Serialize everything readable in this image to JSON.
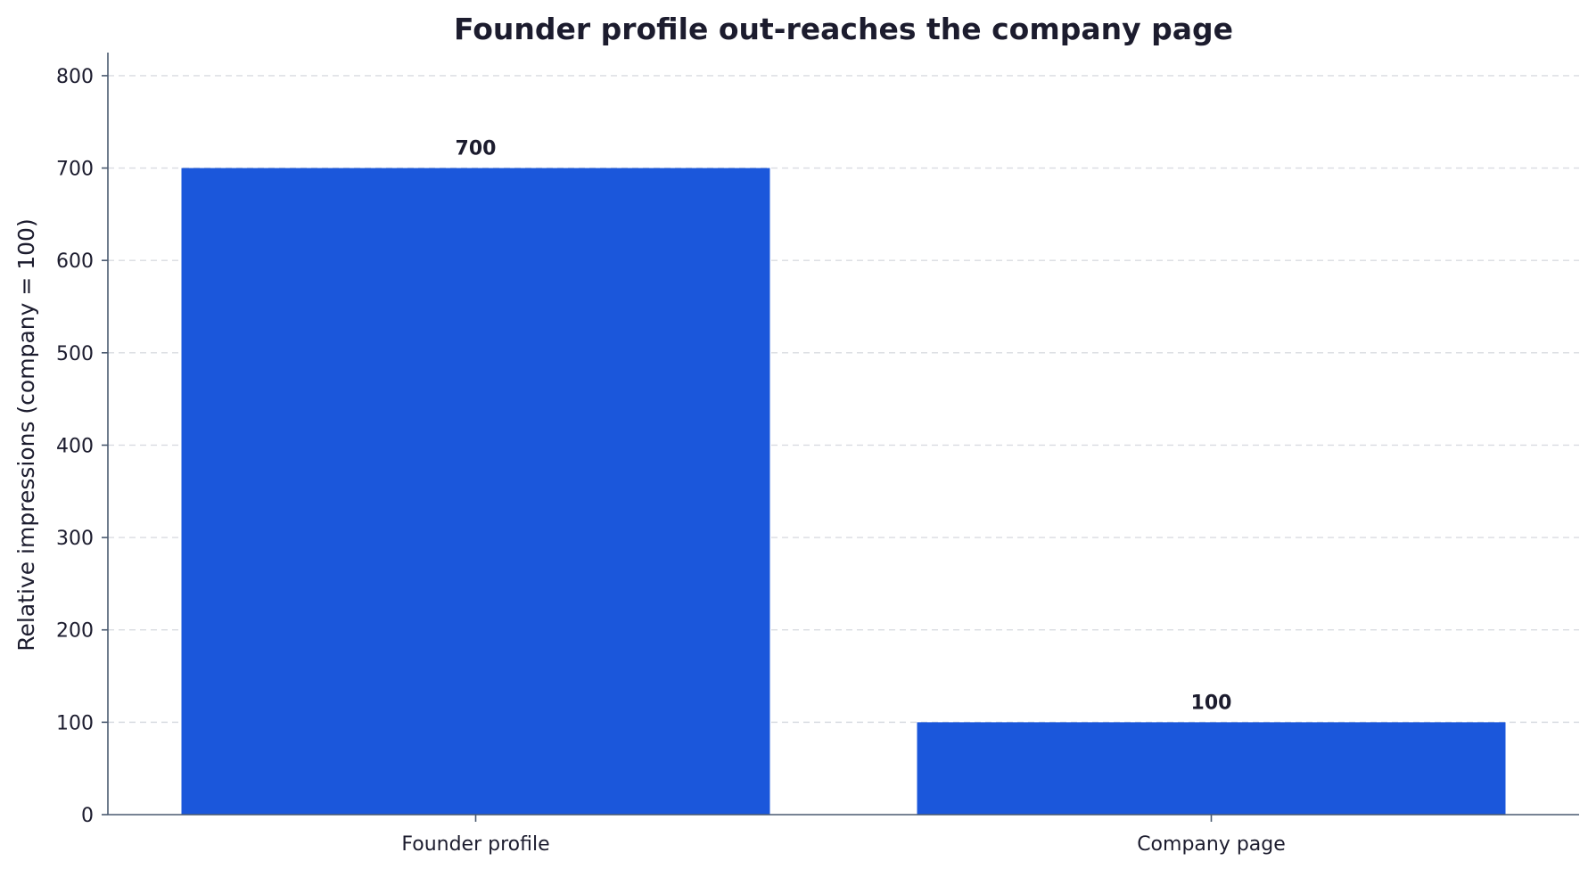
{
  "chart_data": {
    "type": "bar",
    "title": "Founder profile out-reaches the company page",
    "xlabel": "",
    "ylabel": "Relative impressions (company = 100)",
    "categories": [
      "Founder profile",
      "Company page"
    ],
    "values": [
      700,
      100
    ],
    "data_labels": [
      "700",
      "100"
    ],
    "ylim": [
      0,
      825
    ],
    "yticks": [
      0,
      100,
      200,
      300,
      400,
      500,
      600,
      700,
      800
    ],
    "grid": true,
    "bar_color": "#1b57db",
    "legend": false
  }
}
